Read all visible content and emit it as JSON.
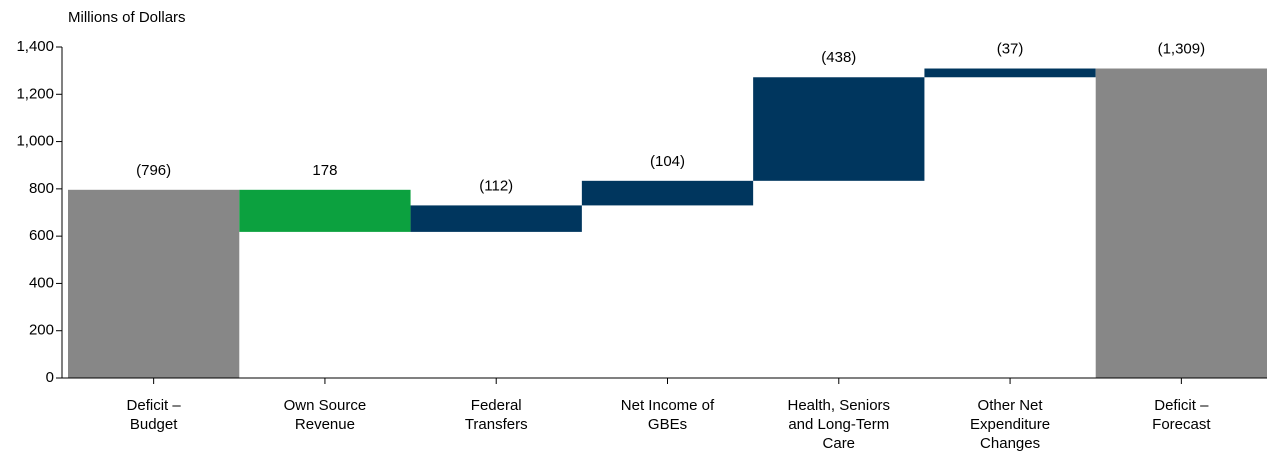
{
  "chart_data": {
    "type": "waterfall",
    "y_label": "Millions of Dollars",
    "categories": [
      "Deficit – Budget",
      "Own Source Revenue",
      "Federal Transfers",
      "Net Income of GBEs",
      "Health, Seniors and Long-Term Care",
      "Other Net Expenditure Changes",
      "Deficit – Forecast"
    ],
    "values": [
      796,
      -178,
      112,
      104,
      438,
      37,
      1309
    ],
    "value_labels": [
      "(796)",
      "178",
      "(112)",
      "(104)",
      "(438)",
      "(37)",
      "(1,309)"
    ],
    "colors": {
      "total": "#878787",
      "decrease": "#0ca13f",
      "increase": "#00365e"
    },
    "ylim": [
      0,
      1400
    ],
    "yticks": [
      0,
      200,
      400,
      600,
      800,
      {
        "value": 1000,
        "label": "1,000"
      },
      {
        "value": 1200,
        "label": "1,200"
      },
      {
        "value": 1400,
        "label": "1,400"
      }
    ]
  }
}
